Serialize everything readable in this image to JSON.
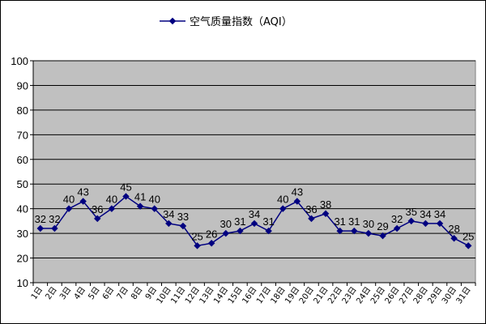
{
  "chart_data": {
    "type": "line",
    "legend_label": "空气质量指数（AQI）",
    "legend_position": "top",
    "categories": [
      "1日",
      "2日",
      "3日",
      "4日",
      "5日",
      "6日",
      "7日",
      "8日",
      "9日",
      "10日",
      "11日",
      "12日",
      "13日",
      "14日",
      "15日",
      "16日",
      "17日",
      "18日",
      "19日",
      "20日",
      "21日",
      "22日",
      "23日",
      "24日",
      "25日",
      "26日",
      "27日",
      "28日",
      "29日",
      "30日",
      "31日"
    ],
    "series": [
      {
        "name": "空气质量指数（AQI）",
        "values": [
          32,
          32,
          40,
          43,
          36,
          40,
          45,
          41,
          40,
          34,
          33,
          25,
          26,
          30,
          31,
          34,
          31,
          40,
          43,
          36,
          38,
          31,
          31,
          30,
          29,
          32,
          35,
          34,
          34,
          28,
          25
        ]
      }
    ],
    "ylim": [
      10,
      100
    ],
    "yticks": [
      10,
      20,
      30,
      40,
      50,
      60,
      70,
      80,
      90,
      100
    ],
    "grid": true,
    "colors": {
      "line": "#000080",
      "plot_background": "#C0C0C0",
      "gridline": "#000000"
    }
  }
}
